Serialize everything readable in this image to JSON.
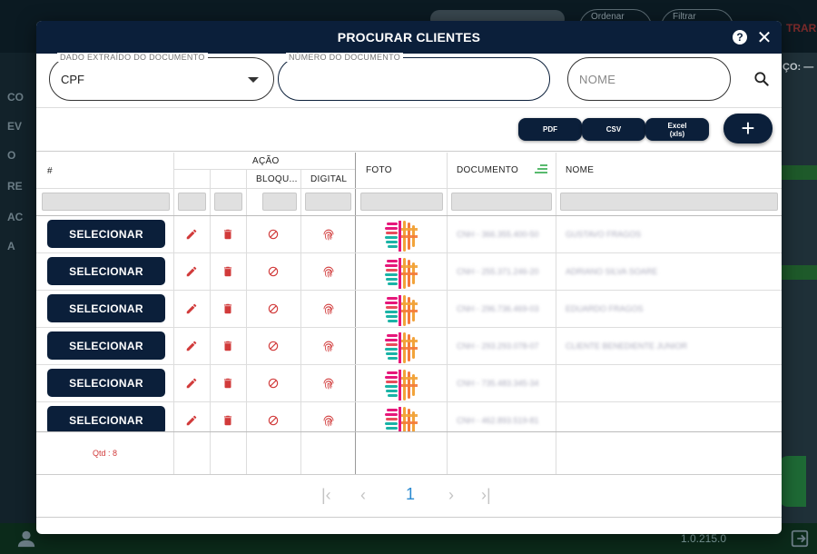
{
  "background": {
    "sidebar_items": [
      "CO",
      "EV",
      "O",
      "RE",
      "AC",
      "A"
    ],
    "pill_order": "Ordenar",
    "pill_filter": "Filtrar",
    "red_text": "TRAR",
    "right_label": "ÇO: —",
    "version": "1.0.215.0"
  },
  "modal": {
    "title": "PROCURAR CLIENTES",
    "help_label": "?",
    "close_label": "✕"
  },
  "filters": {
    "doc_type": {
      "label": "DADO EXTRAÍDO DO DOCUMENTO",
      "value": "CPF"
    },
    "doc_number": {
      "label": "NÚMERO DO DOCUMENTO",
      "value": ""
    },
    "name": {
      "placeholder": "NOME"
    }
  },
  "export": {
    "pdf": "PDF",
    "csv": "CSV",
    "excel_line1": "Excel",
    "excel_line2": "(xls)",
    "add": "+"
  },
  "table": {
    "headers": {
      "index": "#",
      "action": "AÇÃO",
      "block": "BLOQU...",
      "digital": "DIGITAL",
      "photo": "FOTO",
      "document": "DOCUMENTO",
      "name": "NOME"
    },
    "select_label": "SELECIONAR",
    "rows": [
      {
        "document": "CNH - 366.355.400-50",
        "name": "GUSTAVO FRAGOS"
      },
      {
        "document": "CNH - 255.371.246-20",
        "name": "ADRIANO SILVA SOARE"
      },
      {
        "document": "CNH - 296.736.469-03",
        "name": "EDUARDO FRAGOS"
      },
      {
        "document": "CNH - 293.293.078-07",
        "name": "CLIENTE BENEDIENTE JUNIOR"
      },
      {
        "document": "CNH - 735.483.345-34",
        "name": ""
      },
      {
        "document": "CNH - 462.893.519-81",
        "name": ""
      }
    ],
    "qtd": "Qtd : 8"
  },
  "pagination": {
    "first": "|‹",
    "prev": "‹",
    "current": "1",
    "next": "›",
    "last": "›|"
  },
  "colors": {
    "primary": "#0b1f3a",
    "danger": "#d13a3a",
    "accent": "#2a8ad1"
  }
}
